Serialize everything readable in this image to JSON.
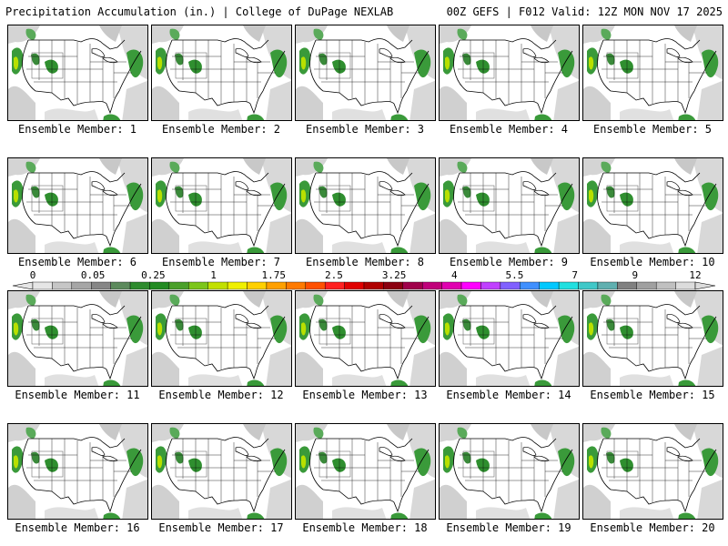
{
  "header": {
    "left": "Precipitation Accumulation (in.) | College of DuPage NEXLAB",
    "right": "00Z GEFS | F012 Valid: 12Z MON NOV 17 2025"
  },
  "colorbar": {
    "labels": [
      "0",
      "0.05",
      "0.25",
      "1",
      "1.75",
      "2.5",
      "3.25",
      "4",
      "5.5",
      "7",
      "9",
      "12"
    ],
    "colors": [
      "#e6e6e6",
      "#c6c6c6",
      "#a6a6a6",
      "#868686",
      "#5c8a5c",
      "#2e8b2e",
      "#228b22",
      "#4aa02a",
      "#7cc61a",
      "#c2e000",
      "#f0f000",
      "#ffd000",
      "#ffa000",
      "#ff7a00",
      "#ff5000",
      "#ff2020",
      "#e00000",
      "#b00000",
      "#8b0010",
      "#a0004a",
      "#c0007a",
      "#e000b0",
      "#ff00ff",
      "#c040ff",
      "#8060ff",
      "#4090ff",
      "#00c8ff",
      "#20e0e0",
      "#40c8c8",
      "#60b0b0",
      "#808080",
      "#a0a0a0",
      "#c0c0c0",
      "#dcdcdc"
    ]
  },
  "members": [
    {
      "label": "Ensemble Member: 1"
    },
    {
      "label": "Ensemble Member: 2"
    },
    {
      "label": "Ensemble Member: 3"
    },
    {
      "label": "Ensemble Member: 4"
    },
    {
      "label": "Ensemble Member: 5"
    },
    {
      "label": "Ensemble Member: 6"
    },
    {
      "label": "Ensemble Member: 7"
    },
    {
      "label": "Ensemble Member: 8"
    },
    {
      "label": "Ensemble Member: 9"
    },
    {
      "label": "Ensemble Member: 10"
    },
    {
      "label": "Ensemble Member: 11"
    },
    {
      "label": "Ensemble Member: 12"
    },
    {
      "label": "Ensemble Member: 13"
    },
    {
      "label": "Ensemble Member: 14"
    },
    {
      "label": "Ensemble Member: 15"
    },
    {
      "label": "Ensemble Member: 16"
    },
    {
      "label": "Ensemble Member: 17"
    },
    {
      "label": "Ensemble Member: 18"
    },
    {
      "label": "Ensemble Member: 19"
    },
    {
      "label": "Ensemble Member: 20"
    }
  ]
}
